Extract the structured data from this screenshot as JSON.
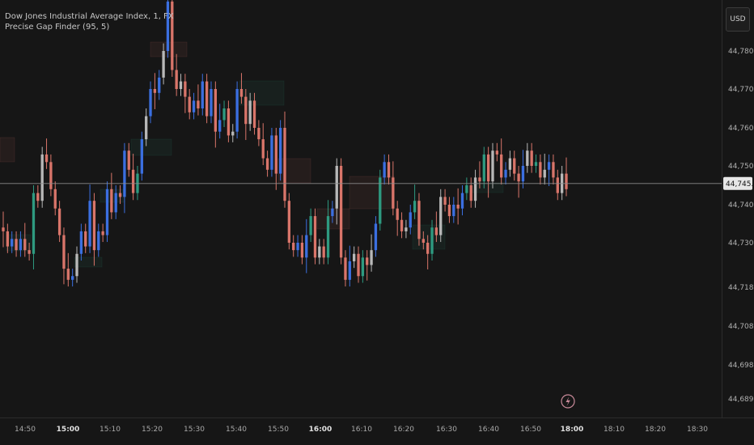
{
  "legend": {
    "symbol": "Dow Jones Industrial Average Index, 1, FX",
    "indicator": "Precise Gap Finder (95, 5)"
  },
  "currency_button": {
    "label": "USD"
  },
  "current_price": {
    "value": 44745.46,
    "label": "44,745.46"
  },
  "alert_icon": "lightning-icon",
  "colors": {
    "background": "#161616",
    "up_blue": "#3b6fe0",
    "down_red": "#d9756a",
    "neutral_gray": "#b8b8b8",
    "up_green": "#2e9a80",
    "price_line": "#8a8a8a"
  },
  "chart_data": {
    "type": "candlestick",
    "x_ticks": [
      "14:50",
      "15:00",
      "15:10",
      "15:20",
      "15:30",
      "15:40",
      "15:50",
      "16:00",
      "16:10",
      "16:20",
      "16:30",
      "16:40",
      "16:50",
      "18:00",
      "18:10",
      "18:20",
      "18:30"
    ],
    "bold_x_ticks": [
      "15:00",
      "16:00",
      "18:00"
    ],
    "y_ticks": [
      44780,
      44770,
      44760,
      44750,
      44740,
      44730,
      44718,
      44708,
      44698,
      44689
    ],
    "y_tick_labels": [
      "44,780.00",
      "44,770.00",
      "44,760.00",
      "44,750.00",
      "44,740.00",
      "44,730.00",
      "44,718.00",
      "44,708.00",
      "44,698.00",
      "44,689.00"
    ],
    "series": [
      {
        "name": "Dow Jones Industrial Average Index",
        "closes": [
          44733,
          44729,
          44731,
          44728,
          44731,
          44728,
          44727,
          44743,
          44741,
          44753,
          44751,
          44744,
          44739,
          44732,
          44723,
          44720,
          44721,
          44727,
          44733,
          44729,
          44741,
          44728,
          44733,
          44732,
          44744,
          44738,
          44743,
          44742,
          44754,
          44749,
          44743,
          44748,
          44757,
          44763,
          44770,
          44769,
          44773,
          44780,
          44793,
          44775,
          44770,
          44772,
          44768,
          44764,
          44767,
          44765,
          44772,
          44763,
          44770,
          44759,
          44762,
          44765,
          44758,
          44759,
          44770,
          44768,
          44761,
          44767,
          44760,
          44757,
          44752,
          44749,
          44758,
          44748,
          44760,
          44741,
          44730,
          44728,
          44730,
          44726,
          44732,
          44737,
          44726,
          44729,
          44726,
          44737,
          44739,
          44750,
          44726,
          44720,
          44725,
          44727,
          44721,
          44726,
          44724,
          44728,
          44735,
          44747,
          44751,
          44747,
          44739,
          44736,
          44733,
          44734,
          44738,
          44741,
          44731,
          44730,
          44727,
          44734,
          44732,
          44742,
          44740,
          44737,
          44740,
          44739,
          44743,
          44745,
          44741,
          44747,
          44746,
          44753,
          44746,
          44754,
          44753,
          44747,
          44749,
          44752,
          44748,
          44746,
          44750,
          44754,
          44750,
          44751,
          44747,
          44749,
          44751,
          44747,
          44743,
          44748,
          44744
        ],
        "opens_from_previous_close": true
      }
    ],
    "ylim": [
      44689,
      44788
    ]
  }
}
